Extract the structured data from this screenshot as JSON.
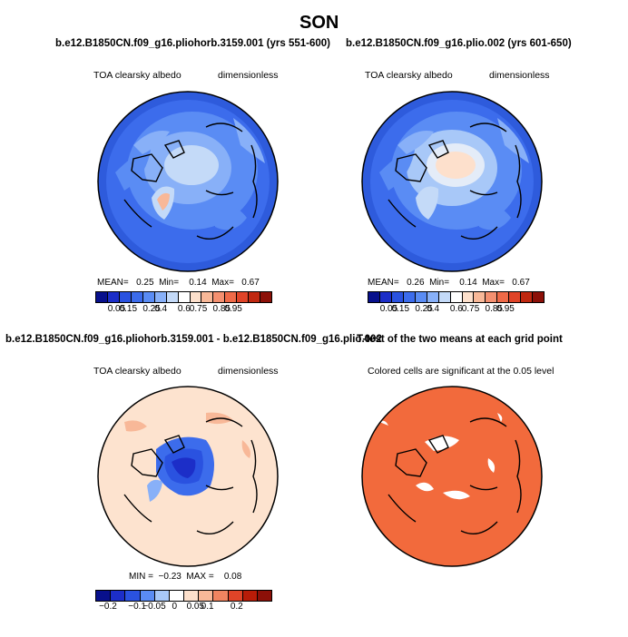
{
  "title": "SON",
  "panels": [
    {
      "title": "b.e12.B1850CN.f09_g16.pliohorb.3159.001 (yrs 551-600)",
      "left_label": "TOA clearsky albedo",
      "right_label": "dimensionless",
      "stats": {
        "mean_label": "MEAN=",
        "mean": "0.25",
        "min_label": "Min=",
        "min": "0.14",
        "max_label": "Max=",
        "max": "0.67"
      }
    },
    {
      "title": "b.e12.B1850CN.f09_g16.plio.002 (yrs 601-650)",
      "left_label": "TOA clearsky albedo",
      "right_label": "dimensionless",
      "stats": {
        "mean_label": "MEAN=",
        "mean": "0.26",
        "min_label": "Min=",
        "min": "0.14",
        "max_label": "Max=",
        "max": "0.67"
      }
    },
    {
      "title": "b.e12.B1850CN.f09_g16.pliohorb.3159.001 - b.e12.B1850CN.f09_g16.plio.002",
      "left_label": "TOA clearsky albedo",
      "right_label": "dimensionless",
      "stats": {
        "min_label": "MIN =",
        "min": "−0.23",
        "max_label": "MAX =",
        "max": "0.08"
      }
    },
    {
      "title": "T-test of the two means at each grid point",
      "left_label": "Colored cells are significant at the 0.05 level"
    }
  ],
  "colorbars": {
    "albedo": {
      "ticks": [
        "0.05",
        "0.15",
        "0.25",
        "0.4",
        "0.6",
        "0.75",
        "0.85",
        "0.95"
      ],
      "colors": [
        "#08108c",
        "#1c2ec8",
        "#2a52e0",
        "#3c6cec",
        "#5a8cf4",
        "#88b0f8",
        "#c4daf8",
        "#ffffff",
        "#fde0cc",
        "#f8b898",
        "#f49070",
        "#ef6a48",
        "#e04428",
        "#c02810",
        "#8c1008"
      ]
    },
    "diff": {
      "ticks": [
        "−0.2",
        "−0.1",
        "−0.05",
        "0",
        "0.05",
        "0.1",
        "0.2"
      ],
      "colors": [
        "#08108c",
        "#1c2ec8",
        "#2a52e0",
        "#5a8cf4",
        "#a8c8f8",
        "#ffffff",
        "#fde0cc",
        "#f8b898",
        "#f08460",
        "#e04428",
        "#b81c08",
        "#8c1008"
      ]
    }
  },
  "colors": {
    "ocean_panel1": "#3a66e6",
    "ocean_panel2": "#3866e4",
    "diff_bg": "#fde3cf",
    "ttest_fill": "#f26a3c"
  }
}
